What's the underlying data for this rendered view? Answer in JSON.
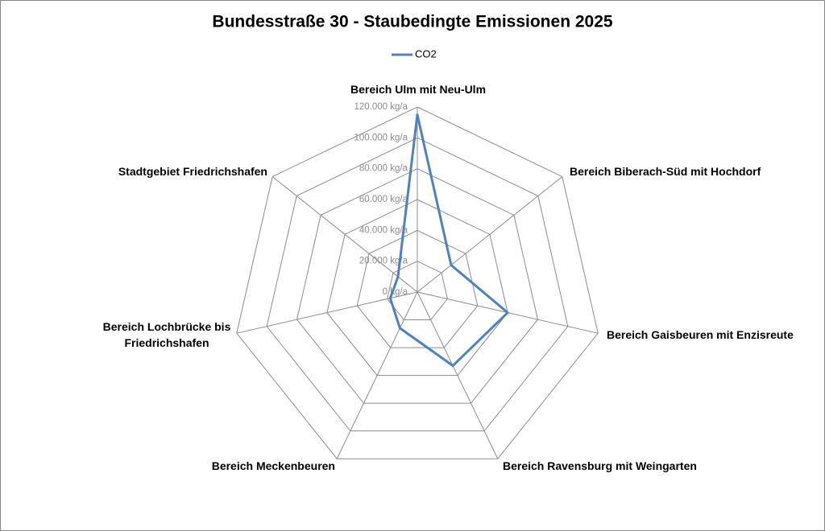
{
  "chart_data": {
    "type": "radar",
    "title": "Bundesstraße 30 - Staubedingte Emissionen 2025",
    "categories": [
      "Bereich Ulm mit Neu-Ulm",
      "Bereich Biberach-Süd mit Hochdorf",
      "Bereich Gaisbeuren mit Enzisreute",
      "Bereich Ravensburg mit Weingarten",
      "Bereich Meckenbeuren",
      "Bereich Lochbrücke bis Friedrichshafen",
      "Stadtgebiet Friedrichshafen"
    ],
    "series": [
      {
        "name": "CO2",
        "color": "#4f81bd",
        "values": [
          115000,
          28000,
          60000,
          53000,
          26000,
          18000,
          16000
        ]
      }
    ],
    "ylim": [
      0,
      120000
    ],
    "yticks": [
      {
        "value": 0,
        "label": "0 kg/a"
      },
      {
        "value": 20000,
        "label": "20.000 kg/a"
      },
      {
        "value": 40000,
        "label": "40.000 kg/a"
      },
      {
        "value": 60000,
        "label": "60.000 kg/a"
      },
      {
        "value": 80000,
        "label": "80.000 kg/a"
      },
      {
        "value": 100000,
        "label": "100.000 kg/a"
      },
      {
        "value": 120000,
        "label": "120.000 kg/a"
      }
    ],
    "grid": true,
    "legend": "top"
  }
}
